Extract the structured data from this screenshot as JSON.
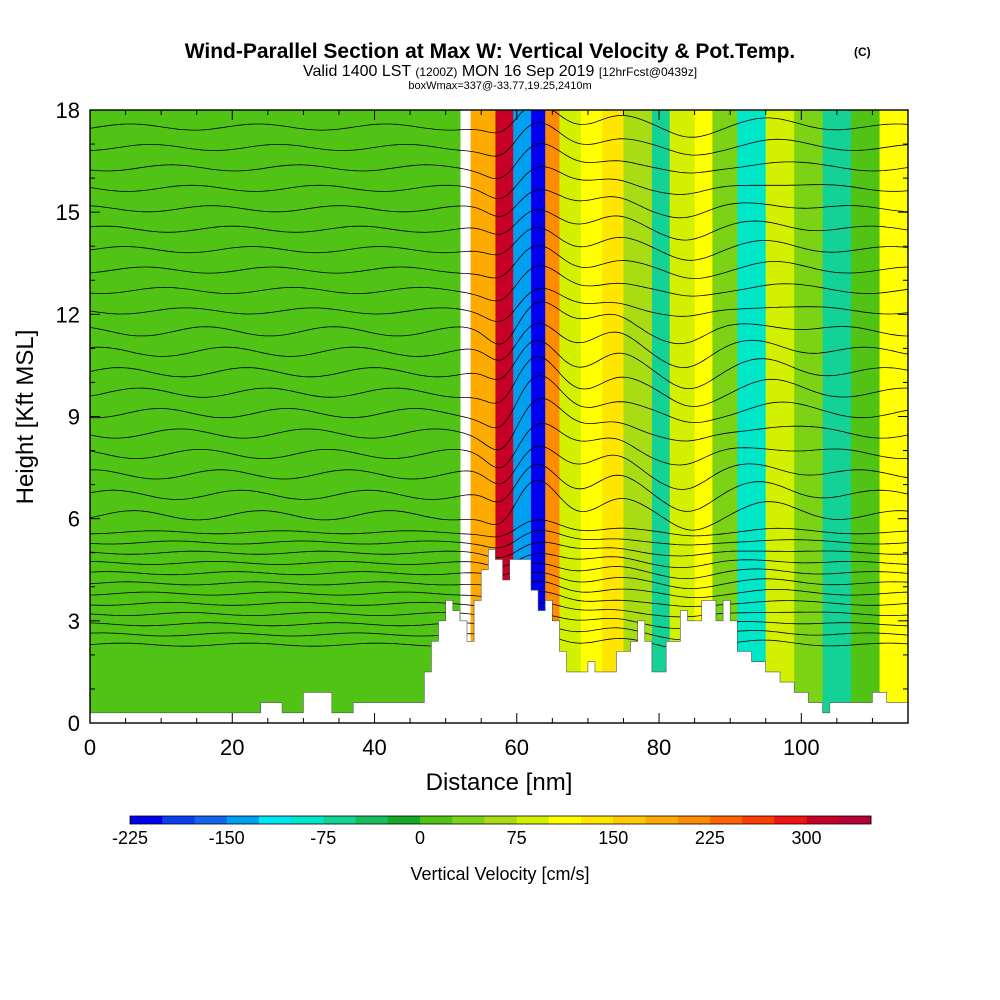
{
  "chart_data": {
    "type": "heatmap",
    "title": "Wind-Parallel Section at Max W: Vertical Velocity & Pot.Temp.",
    "title_mark": "(C)",
    "subtitle": {
      "valid": "Valid 1400 LST",
      "zulu": "(1200Z)",
      "date": "MON 16 Sep 2019",
      "forecast": "[12hrFcst@0439z]"
    },
    "boxline": "boxWmax=337@-33.77,19.25,2410m",
    "xlabel": "Distance [nm]",
    "ylabel": "Height [Kft MSL]",
    "xlim": [
      0,
      115
    ],
    "ylim": [
      0,
      18
    ],
    "x_ticks": [
      "0",
      "20",
      "40",
      "60",
      "80",
      "100"
    ],
    "y_ticks": [
      "0",
      "3",
      "6",
      "9",
      "12",
      "15",
      "18"
    ],
    "colorbar": {
      "label": "Vertical Velocity [cm/s]",
      "min": -225,
      "max": 350,
      "step": 25,
      "tick_labels": [
        "-225",
        "-150",
        "-75",
        "0",
        "75",
        "150",
        "225",
        "300"
      ],
      "colors": [
        "#0000ee",
        "#0a3cf0",
        "#1464f0",
        "#00a0f0",
        "#00e6f0",
        "#00e6c8",
        "#14d296",
        "#14be5a",
        "#14aa28",
        "#50c314",
        "#7cd214",
        "#aadc14",
        "#d2f000",
        "#ffff00",
        "#ffe600",
        "#ffc800",
        "#ffaa00",
        "#ff8c00",
        "#ff6400",
        "#ff3c00",
        "#f01414",
        "#c80028",
        "#b40032"
      ]
    },
    "velocity_bands": [
      {
        "x_start": 0,
        "x_end": 52,
        "w": 20
      },
      {
        "x_start": 53.5,
        "x_end": 57,
        "w": 190
      },
      {
        "x_start": 57,
        "x_end": 59.5,
        "w": 300
      },
      {
        "x_start": 59.5,
        "x_end": 62,
        "w": -150
      },
      {
        "x_start": 62,
        "x_end": 64,
        "w": -210
      },
      {
        "x_start": 64,
        "x_end": 66,
        "w": 210
      },
      {
        "x_start": 66,
        "x_end": 69,
        "w": 75
      },
      {
        "x_start": 69,
        "x_end": 72,
        "w": 110
      },
      {
        "x_start": 72,
        "x_end": 75,
        "w": 140
      },
      {
        "x_start": 75,
        "x_end": 79,
        "w": 50
      },
      {
        "x_start": 79,
        "x_end": 81.5,
        "w": -75
      },
      {
        "x_start": 81.5,
        "x_end": 85,
        "w": 80
      },
      {
        "x_start": 85,
        "x_end": 87.5,
        "w": 110
      },
      {
        "x_start": 87.5,
        "x_end": 91,
        "w": 45
      },
      {
        "x_start": 91,
        "x_end": 95,
        "w": -85
      },
      {
        "x_start": 95,
        "x_end": 99,
        "w": 90
      },
      {
        "x_start": 99,
        "x_end": 103,
        "w": 30
      },
      {
        "x_start": 103,
        "x_end": 107,
        "w": -60
      },
      {
        "x_start": 107,
        "x_end": 111,
        "w": 20
      },
      {
        "x_start": 111,
        "x_end": 115,
        "w": 120
      }
    ],
    "terrain": [
      [
        0,
        0.3
      ],
      [
        23,
        0.3
      ],
      [
        24,
        0.6
      ],
      [
        26,
        0.6
      ],
      [
        27,
        0.3
      ],
      [
        29,
        0.3
      ],
      [
        30,
        0.9
      ],
      [
        33,
        0.9
      ],
      [
        34,
        0.3
      ],
      [
        36,
        0.3
      ],
      [
        37,
        0.6
      ],
      [
        46,
        0.6
      ],
      [
        47,
        1.5
      ],
      [
        48,
        2.4
      ],
      [
        49,
        3.0
      ],
      [
        50,
        3.6
      ],
      [
        51,
        3.3
      ],
      [
        52,
        3.0
      ],
      [
        53,
        2.4
      ],
      [
        54,
        3.6
      ],
      [
        55,
        4.5
      ],
      [
        56,
        5.1
      ],
      [
        57,
        4.8
      ],
      [
        58,
        4.2
      ],
      [
        59,
        4.8
      ],
      [
        61,
        4.8
      ],
      [
        62,
        3.9
      ],
      [
        63,
        3.3
      ],
      [
        64,
        3.6
      ],
      [
        65,
        3.0
      ],
      [
        66,
        2.1
      ],
      [
        67,
        1.5
      ],
      [
        69,
        1.5
      ],
      [
        70,
        1.8
      ],
      [
        71,
        1.5
      ],
      [
        73,
        1.5
      ],
      [
        74,
        2.1
      ],
      [
        76,
        2.4
      ],
      [
        77,
        3.0
      ],
      [
        78,
        2.4
      ],
      [
        79,
        1.5
      ],
      [
        80,
        1.5
      ],
      [
        81,
        2.4
      ],
      [
        83,
        3.3
      ],
      [
        84,
        3.0
      ],
      [
        86,
        3.6
      ],
      [
        88,
        3.0
      ],
      [
        89,
        3.6
      ],
      [
        90,
        3.0
      ],
      [
        91,
        2.1
      ],
      [
        93,
        1.8
      ],
      [
        95,
        1.5
      ],
      [
        97,
        1.2
      ],
      [
        99,
        0.9
      ],
      [
        101,
        0.6
      ],
      [
        102,
        0.6
      ],
      [
        103,
        0.3
      ],
      [
        104,
        0.6
      ],
      [
        109,
        0.6
      ],
      [
        110,
        0.9
      ],
      [
        112,
        0.6
      ],
      [
        115,
        0.6
      ]
    ],
    "isentrope_levels": [
      2.3,
      2.6,
      2.9,
      3.2,
      3.5,
      3.8,
      4.1,
      4.4,
      4.7,
      5.0,
      5.3,
      5.6,
      6.1,
      6.7,
      7.3,
      7.9,
      8.5,
      9.1,
      9.7,
      10.3,
      10.9,
      11.5,
      12.1,
      12.7,
      13.3,
      13.9,
      14.5,
      15.1,
      15.7,
      16.3,
      16.9,
      17.5
    ]
  }
}
